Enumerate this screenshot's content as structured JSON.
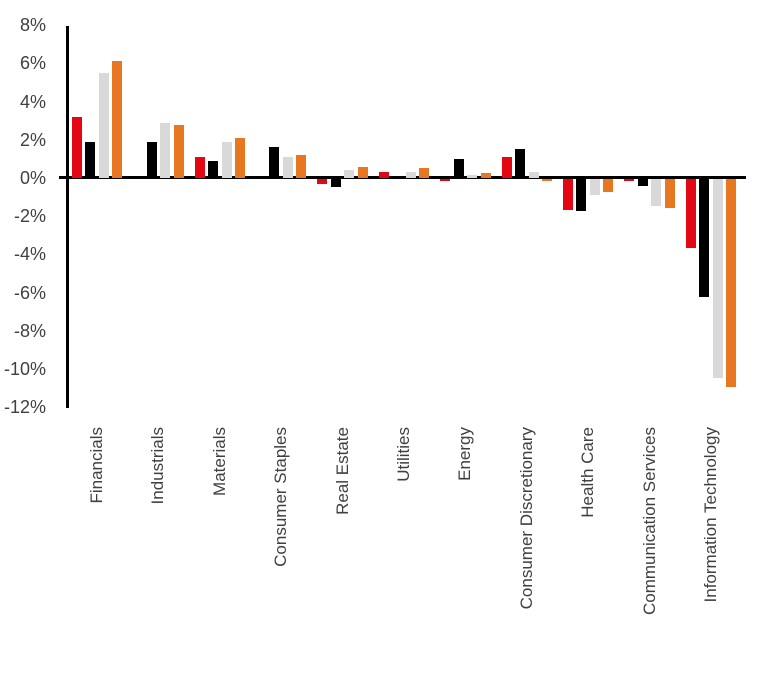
{
  "chart_data": {
    "type": "bar",
    "title": "",
    "xlabel": "",
    "ylabel": "",
    "legend": "none",
    "grid": false,
    "ylim": [
      -12,
      8
    ],
    "y_ticks": [
      {
        "label": "8%",
        "value": 8
      },
      {
        "label": "6%",
        "value": 6
      },
      {
        "label": "4%",
        "value": 4
      },
      {
        "label": "2%",
        "value": 2
      },
      {
        "label": "0%",
        "value": 0
      },
      {
        "label": "-2%",
        "value": -2
      },
      {
        "label": "-4%",
        "value": -4
      },
      {
        "label": "-6%",
        "value": -6
      },
      {
        "label": "-8%",
        "value": -8
      },
      {
        "label": "-10%",
        "value": -10
      },
      {
        "label": "-12%",
        "value": -12
      }
    ],
    "categories": [
      "Financials",
      "Industrials",
      "Materials",
      "Consumer Staples",
      "Real Estate",
      "Utilities",
      "Energy",
      "Consumer Discretionary",
      "Health Care",
      "Communication Services",
      "Information Technology"
    ],
    "series": [
      {
        "name": "red",
        "color": "#e30613",
        "values": [
          3.2,
          0,
          1.1,
          0,
          -0.25,
          0.3,
          -0.1,
          1.1,
          -1.6,
          -0.1,
          -3.6
        ]
      },
      {
        "name": "black",
        "color": "#000000",
        "values": [
          1.9,
          1.9,
          0.9,
          1.6,
          -0.4,
          0,
          1.0,
          1.5,
          -1.7,
          -0.35,
          -6.2
        ]
      },
      {
        "name": "gray",
        "color": "#d9d9d9",
        "values": [
          5.5,
          2.9,
          1.9,
          1.1,
          0.4,
          0.3,
          0.15,
          0.3,
          -0.85,
          -1.4,
          -10.4
        ]
      },
      {
        "name": "orange",
        "color": "#e87722",
        "values": [
          6.1,
          2.8,
          2.1,
          1.2,
          0.55,
          0.5,
          0.25,
          -0.1,
          -0.7,
          -1.5,
          -10.9
        ]
      }
    ],
    "axis_color": "#000000",
    "tick_label_color": "#404040"
  }
}
